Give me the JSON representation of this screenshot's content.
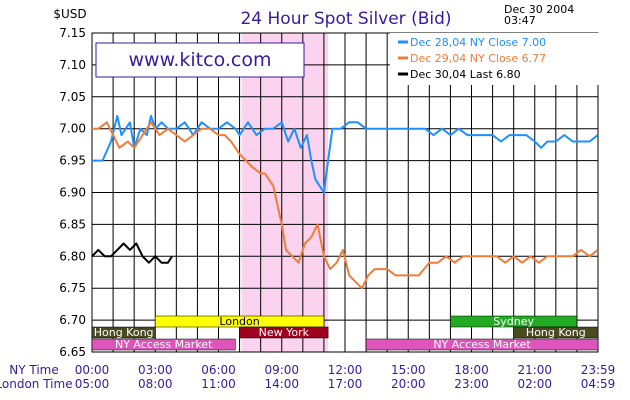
{
  "chart_data": {
    "type": "line",
    "title": "24 Hour Spot Silver (Bid)",
    "ylabel": "$USD",
    "date_line1": "Dec 30 2004",
    "date_line2": "03:47",
    "watermark": "www.kitco.com",
    "ylim": [
      6.65,
      7.15
    ],
    "y_ticks": [
      "6.65",
      "6.70",
      "6.75",
      "6.80",
      "6.85",
      "6.90",
      "6.95",
      "7.00",
      "7.05",
      "7.10",
      "7.15"
    ],
    "x_range_hours": [
      0,
      24
    ],
    "x_row_labels": {
      "ny": "NY Time",
      "london": "London Time"
    },
    "x_ticks_ny": [
      "00:00",
      "03:00",
      "06:00",
      "09:00",
      "12:00",
      "15:00",
      "18:00",
      "21:00",
      "23:59"
    ],
    "x_ticks_london": [
      "05:00",
      "08:00",
      "11:00",
      "14:00",
      "17:00",
      "20:00",
      "23:00",
      "02:00",
      "04:59"
    ],
    "highlight_hours": [
      7.1,
      11.2
    ],
    "legend": [
      {
        "label": "Dec 28,04  NY Close 7.00",
        "color": "#1e90ff"
      },
      {
        "label": "Dec 29,04  NY Close 6.77",
        "color": "#ee7d3a"
      },
      {
        "label": "Dec 30,04  Last 6.80",
        "color": "#000000"
      }
    ],
    "series": [
      {
        "name": "Dec 28,04",
        "color": "#1e90ff",
        "x": [
          0,
          0.5,
          0.9,
          1.2,
          1.4,
          1.8,
          2.0,
          2.3,
          2.6,
          2.8,
          3.0,
          3.3,
          3.6,
          4.0,
          4.4,
          4.8,
          5.2,
          5.6,
          6.0,
          6.4,
          6.8,
          7.0,
          7.2,
          7.4,
          7.8,
          8.2,
          8.6,
          9.0,
          9.3,
          9.6,
          9.9,
          10.2,
          10.4,
          10.6,
          10.8,
          11.0,
          11.2,
          11.4,
          11.8,
          12.2,
          12.6,
          13.0,
          13.4,
          13.8,
          14.2,
          14.6,
          15.0,
          15.4,
          15.8,
          16.2,
          16.6,
          17.0,
          17.4,
          17.8,
          18.2,
          18.6,
          19.0,
          19.4,
          19.8,
          20.2,
          20.6,
          21.0,
          21.3,
          21.6,
          22.0,
          22.4,
          22.8,
          23.2,
          23.6,
          23.99
        ],
        "y": [
          6.95,
          6.95,
          6.98,
          7.02,
          6.99,
          7.01,
          6.97,
          7.0,
          6.99,
          7.02,
          7.0,
          7.01,
          7.0,
          7.0,
          7.01,
          6.99,
          7.01,
          7.0,
          7.0,
          7.01,
          7.0,
          6.99,
          7.0,
          7.01,
          6.99,
          7.0,
          7.0,
          7.01,
          6.98,
          7.0,
          6.97,
          6.99,
          6.95,
          6.92,
          6.91,
          6.9,
          6.95,
          7.0,
          7.0,
          7.01,
          7.01,
          7.0,
          7.0,
          7.0,
          7.0,
          7.0,
          7.0,
          7.0,
          7.0,
          6.99,
          7.0,
          6.99,
          7.0,
          6.99,
          6.99,
          6.99,
          6.99,
          6.98,
          6.99,
          6.99,
          6.99,
          6.98,
          6.97,
          6.98,
          6.98,
          6.99,
          6.98,
          6.98,
          6.98,
          6.99
        ]
      },
      {
        "name": "Dec 29,04",
        "color": "#ee7d3a",
        "x": [
          0,
          0.3,
          0.7,
          1.0,
          1.3,
          1.7,
          2.0,
          2.4,
          2.8,
          3.2,
          3.6,
          4.0,
          4.4,
          4.8,
          5.2,
          5.6,
          6.0,
          6.3,
          6.6,
          7.0,
          7.3,
          7.6,
          8.0,
          8.2,
          8.4,
          8.6,
          8.8,
          9.0,
          9.2,
          9.5,
          9.8,
          10.1,
          10.4,
          10.7,
          11.0,
          11.3,
          11.6,
          11.9,
          12.2,
          12.5,
          12.8,
          13.1,
          13.4,
          13.7,
          14.0,
          14.4,
          14.8,
          15.0,
          15.5,
          16.0,
          16.4,
          16.8,
          17.2,
          17.6,
          18.0,
          18.4,
          18.8,
          19.2,
          19.6,
          20.0,
          20.4,
          20.8,
          21.2,
          21.6,
          22.0,
          22.4,
          22.8,
          23.2,
          23.6,
          23.99
        ],
        "y": [
          7.0,
          7.0,
          7.01,
          6.99,
          6.97,
          6.98,
          6.97,
          6.99,
          7.01,
          6.99,
          7.0,
          6.99,
          6.98,
          6.99,
          7.0,
          7.0,
          6.99,
          6.99,
          6.98,
          6.96,
          6.95,
          6.94,
          6.93,
          6.93,
          6.92,
          6.91,
          6.88,
          6.85,
          6.81,
          6.8,
          6.79,
          6.82,
          6.83,
          6.85,
          6.8,
          6.78,
          6.79,
          6.81,
          6.77,
          6.76,
          6.75,
          6.77,
          6.78,
          6.78,
          6.78,
          6.77,
          6.77,
          6.77,
          6.77,
          6.79,
          6.79,
          6.8,
          6.79,
          6.8,
          6.8,
          6.8,
          6.8,
          6.8,
          6.79,
          6.8,
          6.79,
          6.8,
          6.79,
          6.8,
          6.8,
          6.8,
          6.8,
          6.81,
          6.8,
          6.81
        ]
      },
      {
        "name": "Dec 30,04",
        "color": "#000000",
        "x": [
          0,
          0.3,
          0.6,
          0.9,
          1.2,
          1.5,
          1.8,
          2.1,
          2.4,
          2.7,
          3.0,
          3.3,
          3.6,
          3.8
        ],
        "y": [
          6.8,
          6.81,
          6.8,
          6.8,
          6.81,
          6.82,
          6.81,
          6.82,
          6.8,
          6.79,
          6.8,
          6.79,
          6.79,
          6.8
        ]
      }
    ],
    "sessions_row1": [
      {
        "label": "London",
        "start": 3.0,
        "end": 11.0,
        "color": "#ffff00",
        "text": "#000000"
      },
      {
        "label": "Sydney",
        "start": 17.0,
        "end": 23.0,
        "color": "#22aa22",
        "text": "#ffffff"
      }
    ],
    "sessions_row2": [
      {
        "label": "Hong  Kong",
        "start": 0.0,
        "end": 3.0,
        "color": "#4a4a20",
        "text": "#ffffff"
      },
      {
        "label": "New  York",
        "start": 7.0,
        "end": 11.2,
        "color": "#a00020",
        "text": "#ffffff"
      },
      {
        "label": "Hong  Kong",
        "start": 20.0,
        "end": 24.0,
        "color": "#4a4a20",
        "text": "#ffffff"
      }
    ],
    "sessions_row3": [
      {
        "label": "NY  Access  Market",
        "start": 0.0,
        "end": 6.8,
        "color": "#dd55bb",
        "text": "#ffffff"
      },
      {
        "label": "NY  Access  Market",
        "start": 13.0,
        "end": 24.0,
        "color": "#dd55bb",
        "text": "#ffffff"
      }
    ]
  }
}
